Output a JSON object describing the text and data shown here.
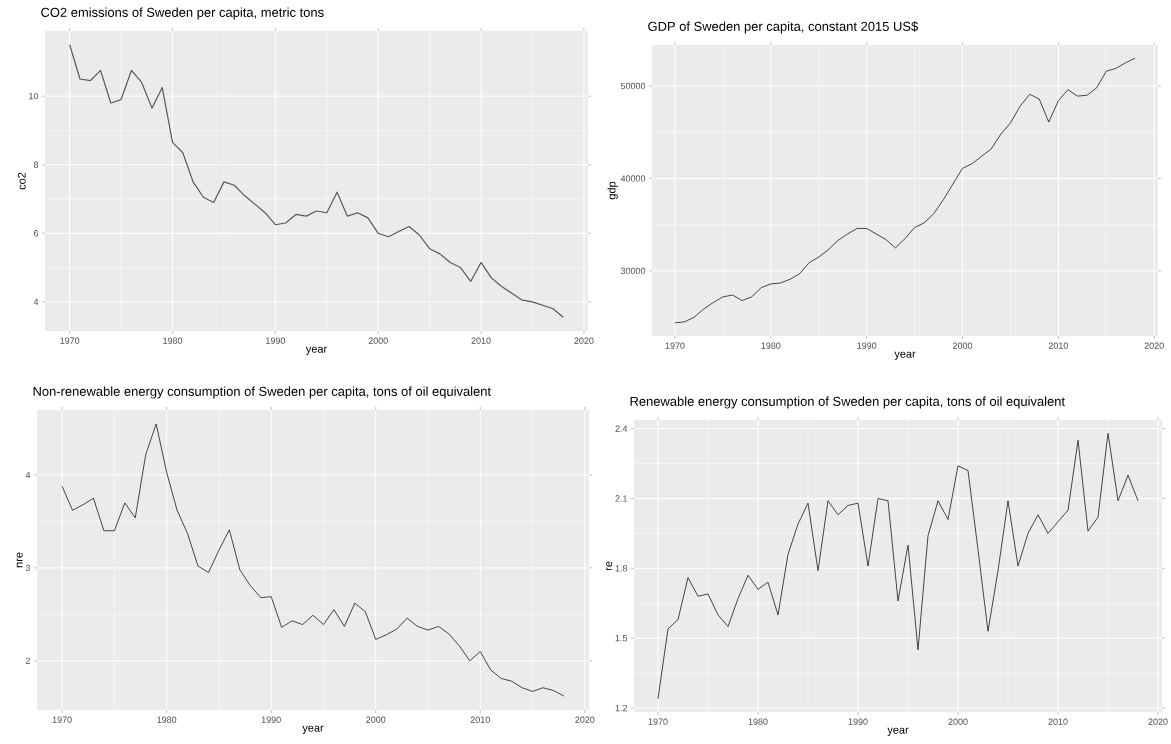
{
  "chart_data": [
    {
      "type": "line",
      "title": "CO2 emissions of Sweden per capita, metric tons",
      "xlabel": "year",
      "ylabel": "co2",
      "grid": true,
      "x": [
        1970,
        1971,
        1972,
        1973,
        1974,
        1975,
        1976,
        1977,
        1978,
        1979,
        1980,
        1981,
        1982,
        1983,
        1984,
        1985,
        1986,
        1987,
        1988,
        1989,
        1990,
        1991,
        1992,
        1993,
        1994,
        1995,
        1996,
        1997,
        1998,
        1999,
        2000,
        2001,
        2002,
        2003,
        2004,
        2005,
        2006,
        2007,
        2008,
        2009,
        2010,
        2011,
        2012,
        2013,
        2014,
        2015,
        2016,
        2017,
        2018
      ],
      "series": [
        {
          "color": "#595959",
          "values": [
            11.5,
            10.5,
            10.45,
            10.75,
            9.8,
            9.9,
            10.75,
            10.4,
            9.65,
            10.25,
            8.65,
            8.35,
            7.5,
            7.05,
            6.9,
            7.5,
            7.4,
            7.1,
            6.85,
            6.6,
            6.25,
            6.3,
            6.55,
            6.5,
            6.65,
            6.6,
            7.2,
            6.5,
            6.6,
            6.45,
            6.0,
            5.9,
            6.05,
            6.2,
            5.95,
            5.55,
            5.4,
            5.15,
            5.0,
            4.6,
            5.15,
            4.7,
            4.45,
            4.25,
            4.05,
            4.0,
            3.9,
            3.8,
            3.55
          ]
        }
      ],
      "xlim": [
        1967.6,
        2020.4
      ],
      "ylim": [
        3.15,
        11.9
      ],
      "xticks": [
        1970,
        1980,
        1990,
        2000,
        2010,
        2020
      ],
      "yticks": [
        4,
        6,
        8,
        10
      ]
    },
    {
      "type": "line",
      "title": "GDP of Sweden per capita, constant 2015 US$",
      "xlabel": "year",
      "ylabel": "gdp",
      "grid": true,
      "x": [
        1970,
        1971,
        1972,
        1973,
        1974,
        1975,
        1976,
        1977,
        1978,
        1979,
        1980,
        1981,
        1982,
        1983,
        1984,
        1985,
        1986,
        1987,
        1988,
        1989,
        1990,
        1991,
        1992,
        1993,
        1994,
        1995,
        1996,
        1997,
        1998,
        1999,
        2000,
        2001,
        2002,
        2003,
        2004,
        2005,
        2006,
        2007,
        2008,
        2009,
        2010,
        2011,
        2012,
        2013,
        2014,
        2015,
        2016,
        2017,
        2018
      ],
      "series": [
        {
          "color": "#1a1a1a",
          "values": [
            24400,
            24500,
            25000,
            25900,
            26600,
            27200,
            27400,
            26800,
            27200,
            28200,
            28600,
            28700,
            29100,
            29700,
            30900,
            31500,
            32300,
            33300,
            34000,
            34600,
            34600,
            34000,
            33400,
            32500,
            33500,
            34700,
            35200,
            36200,
            37700,
            39400,
            41100,
            41600,
            42400,
            43200,
            44800,
            46000,
            47800,
            49100,
            48600,
            46100,
            48400,
            49600,
            48900,
            49000,
            49800,
            51600,
            51900,
            52500,
            53000
          ]
        }
      ],
      "xlim": [
        1967.6,
        2020.4
      ],
      "ylim": [
        22970,
        54430
      ],
      "xticks": [
        1970,
        1980,
        1990,
        2000,
        2010,
        2020
      ],
      "yticks": [
        30000,
        40000,
        50000
      ]
    },
    {
      "type": "line",
      "title": "Non-renewable energy consumption of Sweden per capita, tons of oil equivalent",
      "xlabel": "year",
      "ylabel": "nre",
      "grid": true,
      "x": [
        1970,
        1971,
        1972,
        1973,
        1974,
        1975,
        1976,
        1977,
        1978,
        1979,
        1980,
        1981,
        1982,
        1983,
        1984,
        1985,
        1986,
        1987,
        1988,
        1989,
        1990,
        1991,
        1992,
        1993,
        1994,
        1995,
        1996,
        1997,
        1998,
        1999,
        2000,
        2001,
        2002,
        2003,
        2004,
        2005,
        2006,
        2007,
        2008,
        2009,
        2010,
        2011,
        2012,
        2013,
        2014,
        2015,
        2016,
        2017,
        2018
      ],
      "series": [
        {
          "color": "#1a1a1a",
          "values": [
            3.88,
            3.62,
            3.68,
            3.75,
            3.4,
            3.4,
            3.7,
            3.54,
            4.22,
            4.55,
            4.03,
            3.62,
            3.37,
            3.02,
            2.95,
            3.19,
            3.41,
            2.98,
            2.81,
            2.68,
            2.69,
            2.36,
            2.43,
            2.39,
            2.49,
            2.39,
            2.55,
            2.37,
            2.62,
            2.53,
            2.23,
            2.28,
            2.34,
            2.46,
            2.37,
            2.33,
            2.37,
            2.29,
            2.16,
            2.0,
            2.1,
            1.9,
            1.81,
            1.78,
            1.71,
            1.67,
            1.71,
            1.68,
            1.62
          ]
        }
      ],
      "xlim": [
        1967.6,
        2020.4
      ],
      "ylim": [
        1.47,
        4.7
      ],
      "xticks": [
        1970,
        1980,
        1990,
        2000,
        2010,
        2020
      ],
      "yticks": [
        2,
        3,
        4
      ]
    },
    {
      "type": "line",
      "title": "Renewable energy consumption of Sweden per capita, tons of oil equivalent",
      "xlabel": "year",
      "ylabel": "re",
      "grid": true,
      "x": [
        1970,
        1971,
        1972,
        1973,
        1974,
        1975,
        1976,
        1977,
        1978,
        1979,
        1980,
        1981,
        1982,
        1983,
        1984,
        1985,
        1986,
        1987,
        1988,
        1989,
        1990,
        1991,
        1992,
        1993,
        1994,
        1995,
        1996,
        1997,
        1998,
        1999,
        2000,
        2001,
        2002,
        2003,
        2004,
        2005,
        2006,
        2007,
        2008,
        2009,
        2010,
        2011,
        2012,
        2013,
        2014,
        2015,
        2016,
        2017,
        2018
      ],
      "series": [
        {
          "color": "#1a1a1a",
          "values": [
            1.24,
            1.54,
            1.58,
            1.76,
            1.68,
            1.69,
            1.6,
            1.55,
            1.67,
            1.77,
            1.71,
            1.74,
            1.6,
            1.86,
            1.99,
            2.08,
            1.79,
            2.09,
            2.03,
            2.07,
            2.08,
            1.81,
            2.1,
            2.09,
            1.66,
            1.9,
            1.45,
            1.94,
            2.09,
            2.01,
            2.24,
            2.22,
            1.88,
            1.53,
            1.79,
            2.09,
            1.81,
            1.95,
            2.03,
            1.95,
            2.0,
            2.05,
            2.35,
            1.96,
            2.02,
            2.38,
            2.09,
            2.2,
            2.09
          ]
        }
      ],
      "xlim": [
        1967.6,
        2020.4
      ],
      "ylim": [
        1.183,
        2.437
      ],
      "xticks": [
        1970,
        1980,
        1990,
        2000,
        2010,
        2020
      ],
      "yticks": [
        {
          "value": 1.2,
          "label": "1.2"
        },
        {
          "value": 1.5,
          "label": "1.5"
        },
        {
          "value": 1.8,
          "label": "1.8"
        },
        {
          "value": 2.1,
          "label": "2.1"
        },
        {
          "value": 2.4,
          "label": "2.4"
        }
      ]
    }
  ]
}
